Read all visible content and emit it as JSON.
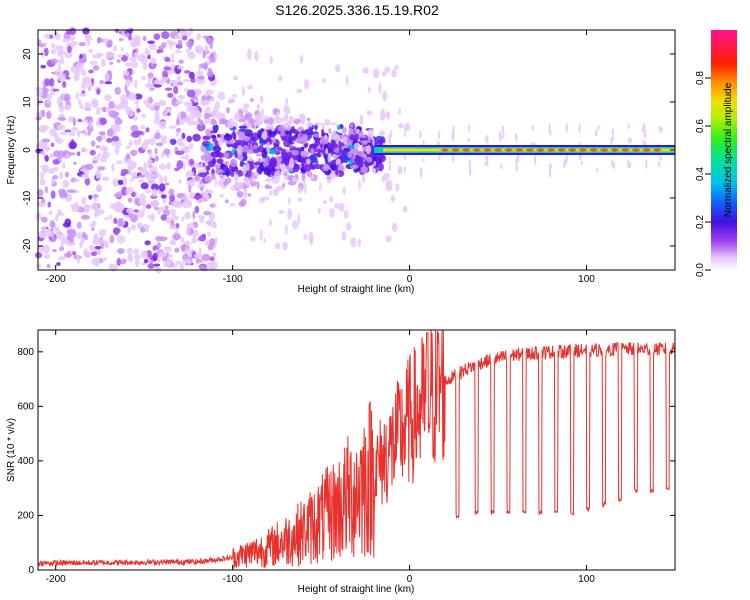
{
  "figure_title": "S126.2025.336.15.19.R02",
  "chart_data": [
    {
      "type": "heatmap",
      "panel": "spectrogram",
      "xlabel": "Height of straight line (km)",
      "ylabel": "Frequency (Hz)",
      "xlim": [
        -210,
        150
      ],
      "ylim": [
        -25,
        25
      ],
      "xticks": [
        -200,
        -100,
        0,
        100
      ],
      "xtick_labels": [
        "-200",
        "-100",
        "0",
        "100"
      ],
      "yticks": [
        -20,
        -10,
        0,
        10,
        20
      ],
      "ytick_labels": [
        "-20",
        "-10",
        "0",
        "10",
        "20"
      ],
      "colorbar": {
        "label": "Normalized spectral amplitude",
        "range": [
          0,
          1
        ],
        "ticks": [
          0.0,
          0.2,
          0.4,
          0.6,
          0.8
        ],
        "tick_labels": [
          "0.0",
          "0.2",
          "0.4",
          "0.6",
          "0.8"
        ]
      },
      "regions": [
        {
          "x": [
            -210,
            -110
          ],
          "description_level": 0.12,
          "freq_spread": 25
        },
        {
          "x": [
            -110,
            -20
          ],
          "description_level": 0.3,
          "freq_spread": 8
        },
        {
          "x": [
            -20,
            150
          ],
          "description_level": 0.9,
          "freq_center": 0,
          "freq_spread": 1
        }
      ]
    },
    {
      "type": "line",
      "panel": "snr",
      "xlabel": "Height of straight line (km)",
      "ylabel": "SNR (10 * v/v)",
      "xlim": [
        -210,
        150
      ],
      "ylim": [
        0,
        880
      ],
      "xticks": [
        -200,
        -100,
        0,
        100
      ],
      "xtick_labels": [
        "-200",
        "-100",
        "0",
        "100"
      ],
      "yticks": [
        0,
        200,
        400,
        600,
        800
      ],
      "ytick_labels": [
        "0",
        "200",
        "400",
        "600",
        "800"
      ],
      "series": [
        {
          "name": "SNR",
          "color": "#e8302c",
          "envelope_x": [
            -210,
            -120,
            -100,
            -80,
            -60,
            -40,
            -20,
            -10,
            0,
            10,
            20,
            30,
            40,
            60,
            80,
            100,
            120,
            150
          ],
          "envelope_y": [
            25,
            30,
            45,
            80,
            140,
            230,
            360,
            450,
            550,
            620,
            690,
            730,
            760,
            790,
            800,
            805,
            810,
            810
          ],
          "dips_x": [
            27,
            38,
            47,
            56,
            65,
            74,
            83,
            92,
            101,
            110,
            119,
            128,
            137,
            146
          ],
          "dips_y": [
            200,
            210,
            210,
            210,
            210,
            210,
            215,
            210,
            220,
            240,
            260,
            290,
            290,
            300
          ]
        }
      ]
    }
  ]
}
